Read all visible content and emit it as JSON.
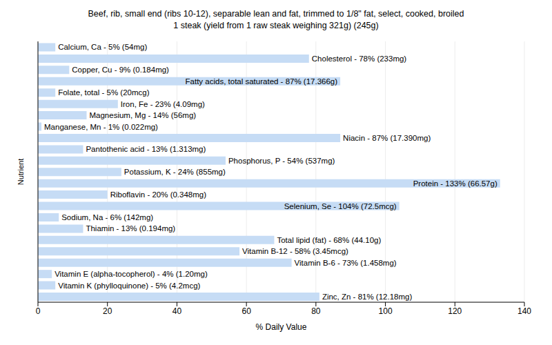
{
  "chart_data": {
    "type": "bar",
    "orientation": "horizontal",
    "title": "Beef, rib, small end (ribs 10-12), separable lean and fat, trimmed to 1/8\" fat, select, cooked, broiled",
    "subtitle": "1 steak (yield from 1 raw steak weighing 321g) (245g)",
    "x_label": "% Daily Value",
    "y_label": "Nutrient",
    "categories": [
      "Calcium, Ca - 5% (54mg)",
      "Cholesterol - 78% (233mg)",
      "Copper, Cu - 9% (0.184mg)",
      "Fatty acids, total saturated - 87% (17.366g)",
      "Folate, total - 5% (20mcg)",
      "Iron, Fe - 23% (4.09mg)",
      "Magnesium, Mg - 14% (56mg)",
      "Manganese, Mn - 1% (0.022mg)",
      "Niacin - 87% (17.390mg)",
      "Pantothenic acid - 13% (1.313mg)",
      "Phosphorus, P - 54% (537mg)",
      "Potassium, K - 24% (855mg)",
      "Protein - 133% (66.57g)",
      "Riboflavin - 20% (0.348mg)",
      "Selenium, Se - 104% (72.5mcg)",
      "Sodium, Na - 6% (142mg)",
      "Thiamin - 13% (0.194mg)",
      "Total lipid (fat) - 68% (44.10g)",
      "Vitamin B-12 - 58% (3.45mcg)",
      "Vitamin B-6 - 73% (1.458mg)",
      "Vitamin E (alpha-tocopherol) - 4% (1.20mg)",
      "Vitamin K (phylloquinone) - 5% (4.2mcg)",
      "Zinc, Zn - 81% (12.18mg)"
    ],
    "values": [
      5,
      78,
      9,
      87,
      5,
      23,
      14,
      1,
      87,
      13,
      54,
      24,
      133,
      20,
      104,
      6,
      13,
      68,
      58,
      73,
      4,
      5,
      81
    ],
    "color": "#c6dcf5",
    "xlim": [
      0,
      140
    ],
    "xticks": [
      0,
      20,
      40,
      60,
      80,
      100,
      120,
      140
    ],
    "grid": true,
    "tick_labels": "x"
  }
}
